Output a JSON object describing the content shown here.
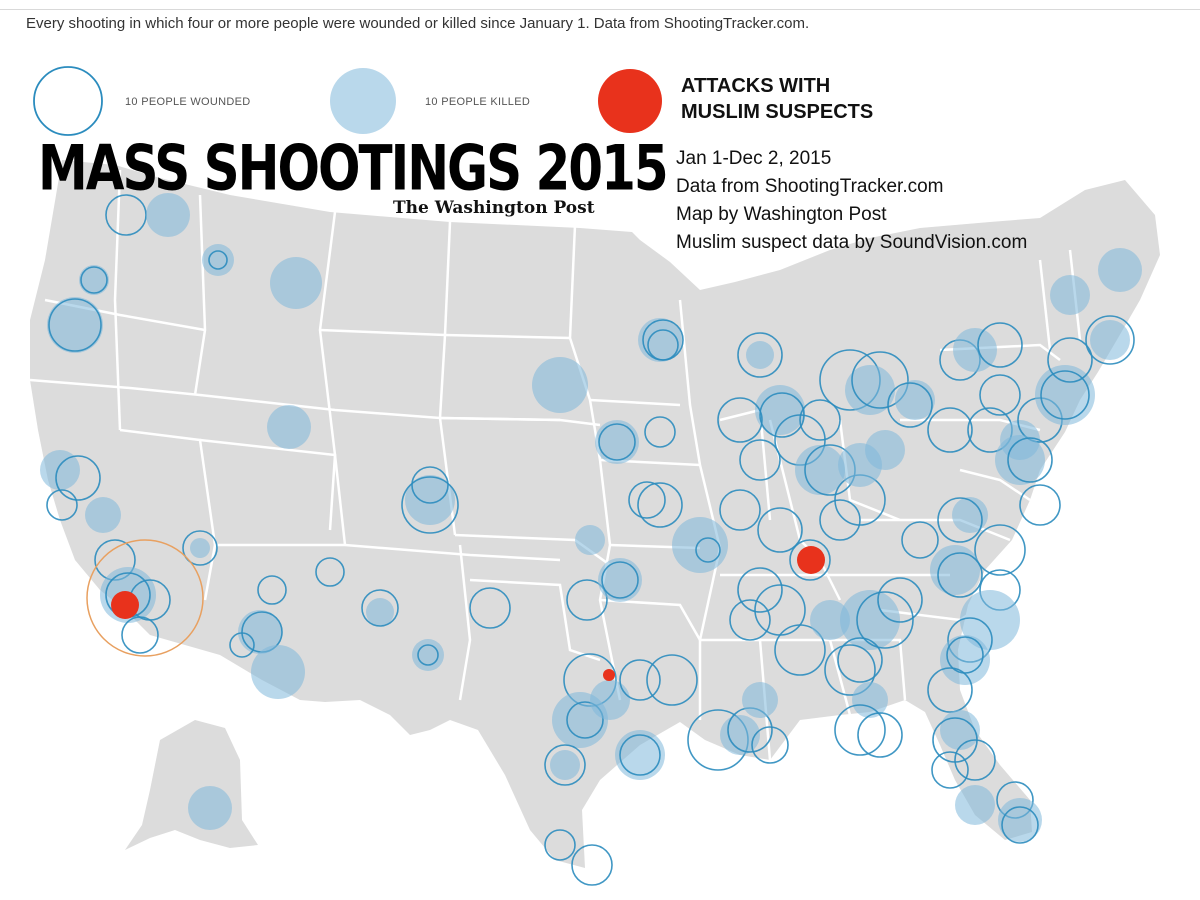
{
  "subtitle": "Every shooting in which four or more people were wounded or killed since January 1. Data from ShootingTracker.com.",
  "legend": {
    "wounded_label": "10 PEOPLE WOUNDED",
    "killed_label": "10 PEOPLE KILLED",
    "muslim_line1": "ATTACKS WITH",
    "muslim_line2": "MUSLIM SUSPECTS"
  },
  "title": "MASS SHOOTINGS 2015",
  "publisher": "The Washington Post",
  "credits": [
    "Jan 1-Dec 2, 2015",
    "Data from ShootingTracker.com",
    "Map by Washington Post",
    "Muslim suspect data by SoundVision.com"
  ],
  "colors": {
    "land": "#dcdcdc",
    "border": "#ffffff",
    "wounded_stroke": "#2b8cbe",
    "killed_fill": "#7fb8db",
    "muslim": "#e8321c",
    "highlight_ring": "#e8a060"
  },
  "icons": {
    "wounded": "hollow-circle",
    "killed": "filled-circle",
    "muslim_attack": "red-dot"
  }
}
